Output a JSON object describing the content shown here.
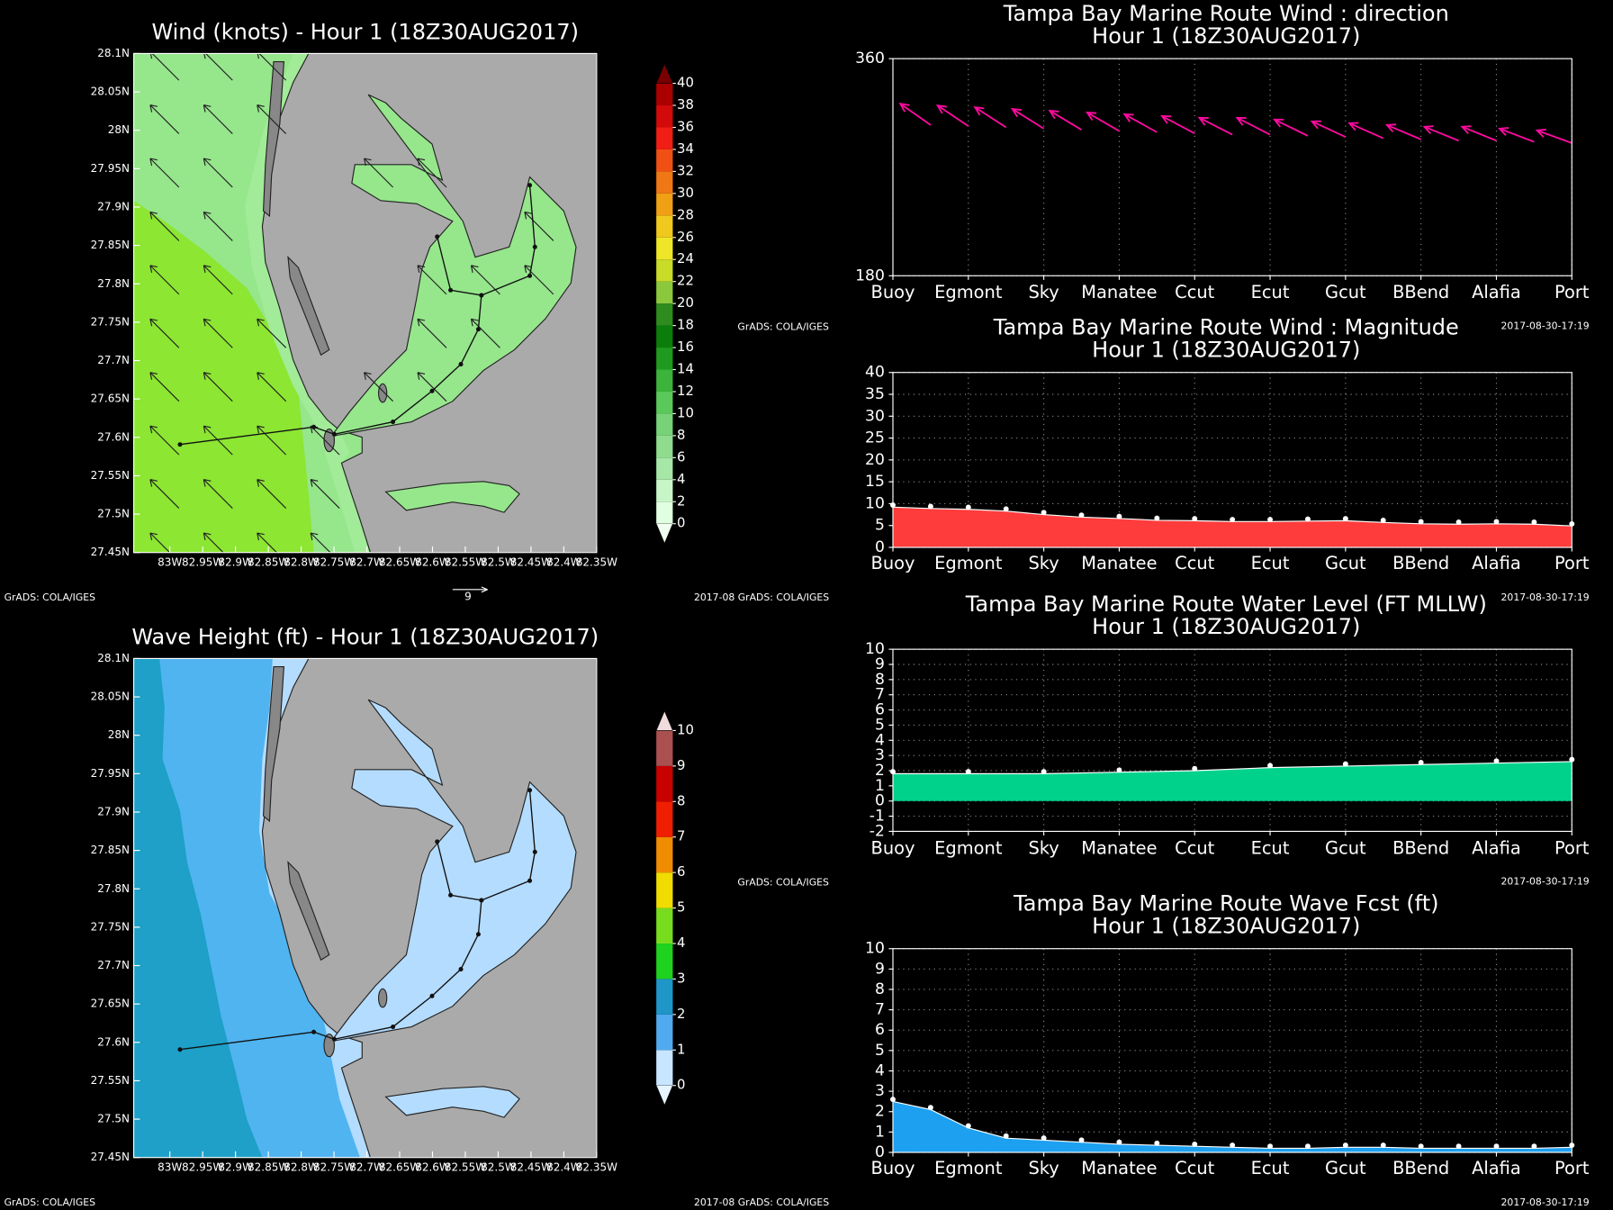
{
  "chart_data": [
    {
      "type": "map",
      "title": "Wind (knots) - Hour 1 (18Z30AUG2017)",
      "xlim": [
        -83.055,
        -82.35
      ],
      "ylim": [
        27.45,
        28.1
      ],
      "xticks": [
        {
          "value": -83,
          "label": "83W"
        },
        {
          "value": -82.95,
          "label": "82.95W"
        },
        {
          "value": -82.9,
          "label": "82.9W"
        },
        {
          "value": -82.85,
          "label": "82.85W"
        },
        {
          "value": -82.8,
          "label": "82.8W"
        },
        {
          "value": -82.75,
          "label": "82.75W"
        },
        {
          "value": -82.7,
          "label": "82.7W"
        },
        {
          "value": -82.65,
          "label": "82.65W"
        },
        {
          "value": -82.6,
          "label": "82.6W"
        },
        {
          "value": -82.55,
          "label": "82.55W"
        },
        {
          "value": -82.5,
          "label": "82.5W"
        },
        {
          "value": -82.45,
          "label": "82.45W"
        },
        {
          "value": -82.4,
          "label": "82.4W"
        },
        {
          "value": -82.35,
          "label": "82.35W"
        }
      ],
      "yticks": [
        {
          "value": 27.45,
          "label": "27.45N"
        },
        {
          "value": 27.5,
          "label": "27.5N"
        },
        {
          "value": 27.55,
          "label": "27.55N"
        },
        {
          "value": 27.6,
          "label": "27.6N"
        },
        {
          "value": 27.65,
          "label": "27.65N"
        },
        {
          "value": 27.7,
          "label": "27.7N"
        },
        {
          "value": 27.75,
          "label": "27.75N"
        },
        {
          "value": 27.8,
          "label": "27.8N"
        },
        {
          "value": 27.85,
          "label": "27.85N"
        },
        {
          "value": 27.9,
          "label": "27.9N"
        },
        {
          "value": 27.95,
          "label": "27.95N"
        },
        {
          "value": 28,
          "label": "28N"
        },
        {
          "value": 28.05,
          "label": "28.05N"
        },
        {
          "value": 28.1,
          "label": "28.1N"
        }
      ],
      "colorbar": {
        "levels": [
          0,
          2,
          4,
          6,
          8,
          10,
          12,
          14,
          16,
          18,
          20,
          22,
          24,
          26,
          28,
          30,
          32,
          34,
          36,
          38,
          40
        ],
        "colors": [
          "#f0fff0",
          "#e1ffe1",
          "#c8f5c8",
          "#a6e6a6",
          "#8fdc8f",
          "#78d278",
          "#5ac85a",
          "#3cb43c",
          "#1e9b1e",
          "#0a7d0a",
          "#2e8b1e",
          "#8cc83c",
          "#c8dc28",
          "#f0e628",
          "#f0c81e",
          "#f0a014",
          "#f07814",
          "#f05014",
          "#f01e14",
          "#d20a0a",
          "#aa0000",
          "#780000"
        ]
      },
      "vector_scale_label": "9",
      "footer_left": "GrADS: COLA/IGES",
      "footer_right": "2017-08 GrADS: COLA/IGES"
    },
    {
      "type": "map",
      "title": "Wave Height (ft) - Hour 1 (18Z30AUG2017)",
      "xlim": [
        -83.055,
        -82.35
      ],
      "ylim": [
        27.45,
        28.1
      ],
      "xticks": [
        {
          "value": -83,
          "label": "83W"
        },
        {
          "value": -82.95,
          "label": "82.95W"
        },
        {
          "value": -82.9,
          "label": "82.9W"
        },
        {
          "value": -82.85,
          "label": "82.85W"
        },
        {
          "value": -82.8,
          "label": "82.8W"
        },
        {
          "value": -82.75,
          "label": "82.75W"
        },
        {
          "value": -82.7,
          "label": "82.7W"
        },
        {
          "value": -82.65,
          "label": "82.65W"
        },
        {
          "value": -82.6,
          "label": "82.6W"
        },
        {
          "value": -82.55,
          "label": "82.55W"
        },
        {
          "value": -82.5,
          "label": "82.5W"
        },
        {
          "value": -82.45,
          "label": "82.45W"
        },
        {
          "value": -82.4,
          "label": "82.4W"
        },
        {
          "value": -82.35,
          "label": "82.35W"
        }
      ],
      "yticks": [
        {
          "value": 27.45,
          "label": "27.45N"
        },
        {
          "value": 27.5,
          "label": "27.5N"
        },
        {
          "value": 27.55,
          "label": "27.55N"
        },
        {
          "value": 27.6,
          "label": "27.6N"
        },
        {
          "value": 27.65,
          "label": "27.65N"
        },
        {
          "value": 27.7,
          "label": "27.7N"
        },
        {
          "value": 27.75,
          "label": "27.75N"
        },
        {
          "value": 27.8,
          "label": "27.8N"
        },
        {
          "value": 27.85,
          "label": "27.85N"
        },
        {
          "value": 27.9,
          "label": "27.9N"
        },
        {
          "value": 27.95,
          "label": "27.95N"
        },
        {
          "value": 28,
          "label": "28N"
        },
        {
          "value": 28.05,
          "label": "28.05N"
        },
        {
          "value": 28.1,
          "label": "28.1N"
        }
      ],
      "colorbar": {
        "levels": [
          0,
          1,
          2,
          3,
          4,
          5,
          6,
          7,
          8,
          9,
          10
        ],
        "colors": [
          "#e6f5ff",
          "#c8e6ff",
          "#50aaf0",
          "#1e96c8",
          "#1ed21e",
          "#78dc1e",
          "#f0dc00",
          "#f08c00",
          "#f01e00",
          "#c80000",
          "#aa5050",
          "#f0dcdc"
        ]
      },
      "footer_left": "GrADS: COLA/IGES",
      "footer_right": "2017-08 GrADS: COLA/IGES"
    },
    {
      "type": "vector",
      "title": "Tampa Bay Marine Route Wind : direction",
      "subtitle": "Hour 1 (18Z30AUG2017)",
      "xlim": [
        0,
        9
      ],
      "xticks": [
        {
          "value": 0,
          "label": "Buoy"
        },
        {
          "value": 1,
          "label": "Egmont"
        },
        {
          "value": 2,
          "label": "Sky"
        },
        {
          "value": 3,
          "label": "Manatee"
        },
        {
          "value": 4,
          "label": "Ccut"
        },
        {
          "value": 5,
          "label": "Ecut"
        },
        {
          "value": 6,
          "label": "Gcut"
        },
        {
          "value": 7,
          "label": "BBend"
        },
        {
          "value": 8,
          "label": "Alafia"
        },
        {
          "value": 9,
          "label": "Port"
        }
      ],
      "ylim": [
        180,
        360
      ],
      "yticks": [
        180,
        360
      ],
      "grid": true,
      "color": "#ff0aa0",
      "x": [
        0.5,
        1,
        1.5,
        2,
        2.5,
        3,
        3.5,
        4,
        4.5,
        5,
        5.5,
        6,
        6.5,
        7,
        7.5,
        8,
        8.5,
        9
      ],
      "values": [
        305,
        304,
        303,
        302,
        301,
        300,
        299,
        298,
        297,
        297,
        296,
        295,
        294,
        293,
        292,
        292,
        291,
        290
      ],
      "footer_left": "GrADS: COLA/IGES",
      "footer_right": "2017-08-30-17:19"
    },
    {
      "type": "area",
      "title": "Tampa Bay Marine Route Wind : Magnitude",
      "subtitle": "Hour 1 (18Z30AUG2017)",
      "xlim": [
        0,
        9
      ],
      "xticks": [
        {
          "value": 0,
          "label": "Buoy"
        },
        {
          "value": 1,
          "label": "Egmont"
        },
        {
          "value": 2,
          "label": "Sky"
        },
        {
          "value": 3,
          "label": "Manatee"
        },
        {
          "value": 4,
          "label": "Ccut"
        },
        {
          "value": 5,
          "label": "Ecut"
        },
        {
          "value": 6,
          "label": "Gcut"
        },
        {
          "value": 7,
          "label": "BBend"
        },
        {
          "value": 8,
          "label": "Alafia"
        },
        {
          "value": 9,
          "label": "Port"
        }
      ],
      "ylim": [
        0,
        40
      ],
      "yticks": [
        0,
        5,
        10,
        15,
        20,
        25,
        30,
        35,
        40
      ],
      "grid": true,
      "color": "#ff3c3c",
      "x": [
        0,
        0.5,
        1,
        1.5,
        2,
        2.5,
        3,
        3.5,
        4,
        4.5,
        5,
        5.5,
        6,
        6.5,
        7,
        7.5,
        8,
        8.5,
        9
      ],
      "values": [
        9.2,
        8.9,
        8.7,
        8.3,
        7.5,
        6.9,
        6.6,
        6.2,
        6.1,
        5.9,
        5.9,
        6.0,
        6.1,
        5.7,
        5.4,
        5.3,
        5.4,
        5.3,
        4.9
      ],
      "footer_right": "2017-08-30-17:19"
    },
    {
      "type": "area",
      "title": "Tampa Bay Marine Route Water Level (FT MLLW)",
      "subtitle": "Hour 1 (18Z30AUG2017)",
      "xlim": [
        0,
        9
      ],
      "xticks": [
        {
          "value": 0,
          "label": "Buoy"
        },
        {
          "value": 1,
          "label": "Egmont"
        },
        {
          "value": 2,
          "label": "Sky"
        },
        {
          "value": 3,
          "label": "Manatee"
        },
        {
          "value": 4,
          "label": "Ccut"
        },
        {
          "value": 5,
          "label": "Ecut"
        },
        {
          "value": 6,
          "label": "Gcut"
        },
        {
          "value": 7,
          "label": "BBend"
        },
        {
          "value": 8,
          "label": "Alafia"
        },
        {
          "value": 9,
          "label": "Port"
        }
      ],
      "ylim": [
        -2,
        10
      ],
      "yticks": [
        -2,
        -1,
        0,
        1,
        2,
        3,
        4,
        5,
        6,
        7,
        8,
        9,
        10
      ],
      "grid": true,
      "color": "#00d28c",
      "x": [
        0,
        1,
        2,
        3,
        4,
        5,
        6,
        7,
        8,
        9
      ],
      "values": [
        1.8,
        1.8,
        1.8,
        1.9,
        2.0,
        2.2,
        2.3,
        2.4,
        2.5,
        2.6
      ],
      "footer_left": "GrADS: COLA/IGES",
      "footer_right": "2017-08-30-17:19"
    },
    {
      "type": "area",
      "title": "Tampa Bay Marine Route Wave Fcst (ft)",
      "subtitle": "Hour 1 (18Z30AUG2017)",
      "xlim": [
        0,
        9
      ],
      "xticks": [
        {
          "value": 0,
          "label": "Buoy"
        },
        {
          "value": 1,
          "label": "Egmont"
        },
        {
          "value": 2,
          "label": "Sky"
        },
        {
          "value": 3,
          "label": "Manatee"
        },
        {
          "value": 4,
          "label": "Ccut"
        },
        {
          "value": 5,
          "label": "Ecut"
        },
        {
          "value": 6,
          "label": "Gcut"
        },
        {
          "value": 7,
          "label": "BBend"
        },
        {
          "value": 8,
          "label": "Alafia"
        },
        {
          "value": 9,
          "label": "Port"
        }
      ],
      "ylim": [
        0,
        10
      ],
      "yticks": [
        0,
        1,
        2,
        3,
        4,
        5,
        6,
        7,
        8,
        9,
        10
      ],
      "grid": true,
      "color": "#1ea0f0",
      "x": [
        0,
        0.5,
        1,
        1.5,
        2,
        2.5,
        3,
        3.5,
        4,
        4.5,
        5,
        5.5,
        6,
        6.5,
        7,
        7.5,
        8,
        8.5,
        9
      ],
      "values": [
        2.5,
        2.1,
        1.2,
        0.7,
        0.6,
        0.5,
        0.4,
        0.35,
        0.3,
        0.25,
        0.2,
        0.2,
        0.25,
        0.25,
        0.2,
        0.2,
        0.2,
        0.2,
        0.25
      ],
      "footer_right": "2017-08-30-17:19"
    }
  ]
}
